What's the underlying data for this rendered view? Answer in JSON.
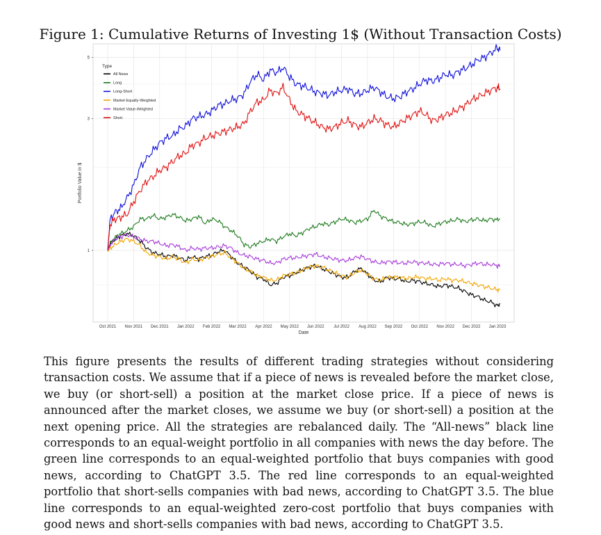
{
  "figure": {
    "title": "Figure 1: Cumulative Returns of Investing 1$ (Without Transaction Costs)",
    "caption": "This figure presents the results of different trading strategies without considering transaction costs. We assume that if a piece of news is revealed before the market close, we buy (or short-sell) a position at the market close price. If a piece of news is announced after the market closes, we assume we buy (or short-sell) a position at the next opening price. All the strategies are rebalanced daily. The “All-news” black line corresponds to an equal-weight portfolio in all companies with news the day before. The green line corresponds to an equal-weighted portfolio that buys companies with good news, according to ChatGPT 3.5. The red line corresponds to an equal-weighted portfolio that short-sells companies with bad news, according to ChatGPT 3.5. The blue line corresponds to an equal-weighted zero-cost portfolio that buys companies with good news and short-sells companies with bad news, according to ChatGPT 3.5."
  },
  "chart_data": {
    "type": "line",
    "xlabel": "Date",
    "ylabel": "Portfolio Value in $",
    "y_scale": "log",
    "ylim": [
      0.55,
      5.6
    ],
    "y_ticks": [
      1,
      3,
      5
    ],
    "x_ticks": [
      "Oct 2021",
      "Nov 2021",
      "Dec 2021",
      "Jan 2022",
      "Feb 2022",
      "Mar 2022",
      "Apr 2022",
      "May 2022",
      "Jun 2022",
      "Jul 2022",
      "Aug 2022",
      "Sep 2022",
      "Oct 2022",
      "Nov 2022",
      "Dec 2022",
      "Jan 2023"
    ],
    "grid": true,
    "legend": {
      "title": "Type",
      "position": "top-left"
    },
    "x": [
      0,
      0.1,
      0.3,
      0.5,
      0.75,
      1,
      1.25,
      1.5,
      1.75,
      2,
      2.25,
      2.5,
      2.75,
      3,
      3.25,
      3.5,
      3.75,
      4,
      4.25,
      4.5,
      4.75,
      5,
      5.25,
      5.5,
      5.75,
      6,
      6.25,
      6.5,
      6.75,
      7,
      7.25,
      7.5,
      7.75,
      8,
      8.25,
      8.5,
      8.75,
      9,
      9.25,
      9.5,
      9.75,
      10,
      10.25,
      10.5,
      10.75,
      11,
      11.25,
      11.5,
      11.75,
      12,
      12.25,
      12.5,
      12.75,
      13,
      13.25,
      13.5,
      13.75,
      14,
      14.25,
      14.5,
      14.75,
      15,
      15.1
    ],
    "series": [
      {
        "name": "All News",
        "color": "#000000",
        "values": [
          1.0,
          1.05,
          1.1,
          1.13,
          1.15,
          1.13,
          1.08,
          1.02,
          0.98,
          0.97,
          0.95,
          0.96,
          0.94,
          0.92,
          0.95,
          0.93,
          0.95,
          0.96,
          0.99,
          1.0,
          0.95,
          0.9,
          0.87,
          0.84,
          0.8,
          0.79,
          0.75,
          0.76,
          0.8,
          0.81,
          0.83,
          0.85,
          0.87,
          0.88,
          0.86,
          0.84,
          0.82,
          0.8,
          0.8,
          0.84,
          0.86,
          0.82,
          0.78,
          0.77,
          0.8,
          0.79,
          0.79,
          0.77,
          0.78,
          0.77,
          0.76,
          0.75,
          0.74,
          0.75,
          0.74,
          0.73,
          0.71,
          0.69,
          0.68,
          0.66,
          0.65,
          0.63,
          0.64
        ]
      },
      {
        "name": "Long",
        "color": "#1b7a1b",
        "values": [
          1.0,
          1.06,
          1.12,
          1.15,
          1.18,
          1.22,
          1.3,
          1.3,
          1.34,
          1.3,
          1.32,
          1.35,
          1.32,
          1.28,
          1.3,
          1.33,
          1.25,
          1.3,
          1.28,
          1.22,
          1.18,
          1.13,
          1.05,
          1.03,
          1.06,
          1.08,
          1.1,
          1.08,
          1.12,
          1.15,
          1.13,
          1.16,
          1.2,
          1.22,
          1.25,
          1.24,
          1.27,
          1.3,
          1.29,
          1.26,
          1.28,
          1.3,
          1.4,
          1.33,
          1.3,
          1.27,
          1.26,
          1.24,
          1.25,
          1.27,
          1.26,
          1.22,
          1.25,
          1.27,
          1.28,
          1.3,
          1.27,
          1.29,
          1.3,
          1.28,
          1.3,
          1.29,
          1.3
        ]
      },
      {
        "name": "Long-Short",
        "color": "#0d0dd9",
        "values": [
          1.0,
          1.3,
          1.38,
          1.42,
          1.55,
          1.72,
          2.0,
          2.15,
          2.3,
          2.45,
          2.55,
          2.6,
          2.75,
          2.82,
          3.0,
          3.05,
          3.1,
          3.2,
          3.35,
          3.4,
          3.5,
          3.55,
          3.7,
          4.1,
          4.35,
          4.15,
          4.5,
          4.4,
          4.6,
          4.25,
          4.0,
          3.95,
          3.85,
          3.75,
          3.7,
          3.65,
          3.75,
          3.8,
          3.85,
          3.7,
          3.7,
          3.8,
          3.9,
          3.75,
          3.6,
          3.55,
          3.6,
          3.75,
          3.85,
          4.0,
          4.15,
          4.1,
          4.2,
          4.35,
          4.3,
          4.45,
          4.55,
          4.7,
          4.9,
          5.0,
          5.2,
          5.4,
          5.3
        ]
      },
      {
        "name": "Market Equally-Weighted",
        "color": "#f0a500",
        "values": [
          1.0,
          1.02,
          1.05,
          1.08,
          1.1,
          1.08,
          1.04,
          0.98,
          0.96,
          0.95,
          0.93,
          0.95,
          0.93,
          0.9,
          0.93,
          0.92,
          0.94,
          0.95,
          0.97,
          0.98,
          0.94,
          0.9,
          0.86,
          0.84,
          0.81,
          0.8,
          0.78,
          0.78,
          0.81,
          0.82,
          0.83,
          0.85,
          0.87,
          0.88,
          0.87,
          0.85,
          0.83,
          0.81,
          0.8,
          0.83,
          0.85,
          0.82,
          0.79,
          0.78,
          0.8,
          0.8,
          0.8,
          0.79,
          0.8,
          0.8,
          0.79,
          0.79,
          0.78,
          0.79,
          0.78,
          0.78,
          0.77,
          0.76,
          0.75,
          0.74,
          0.73,
          0.72,
          0.72
        ]
      },
      {
        "name": "Market Value-Weighted",
        "color": "#a63ad9",
        "values": [
          1.0,
          1.05,
          1.1,
          1.12,
          1.14,
          1.12,
          1.1,
          1.08,
          1.08,
          1.06,
          1.04,
          1.05,
          1.03,
          1.0,
          1.02,
          1.01,
          1.02,
          1.02,
          1.03,
          1.04,
          1.02,
          0.98,
          0.96,
          0.95,
          0.93,
          0.92,
          0.9,
          0.9,
          0.93,
          0.94,
          0.94,
          0.95,
          0.96,
          0.97,
          0.95,
          0.94,
          0.93,
          0.92,
          0.92,
          0.94,
          0.95,
          0.93,
          0.91,
          0.9,
          0.91,
          0.91,
          0.9,
          0.9,
          0.91,
          0.9,
          0.9,
          0.89,
          0.89,
          0.9,
          0.89,
          0.89,
          0.88,
          0.89,
          0.9,
          0.89,
          0.89,
          0.88,
          0.88
        ]
      },
      {
        "name": "Short",
        "color": "#e01010",
        "values": [
          1.0,
          1.25,
          1.3,
          1.32,
          1.35,
          1.5,
          1.65,
          1.78,
          1.85,
          1.95,
          2.0,
          2.1,
          2.2,
          2.25,
          2.4,
          2.45,
          2.55,
          2.6,
          2.65,
          2.7,
          2.75,
          2.8,
          2.88,
          3.2,
          3.45,
          3.5,
          3.8,
          3.7,
          3.9,
          3.5,
          3.2,
          3.1,
          3.0,
          2.9,
          2.8,
          2.75,
          2.8,
          2.9,
          2.95,
          2.85,
          2.8,
          2.9,
          3.0,
          2.95,
          2.85,
          2.8,
          2.9,
          3.0,
          3.1,
          3.2,
          3.1,
          2.95,
          3.0,
          3.1,
          3.15,
          3.25,
          3.35,
          3.5,
          3.6,
          3.7,
          3.8,
          3.9,
          3.85
        ]
      }
    ]
  }
}
